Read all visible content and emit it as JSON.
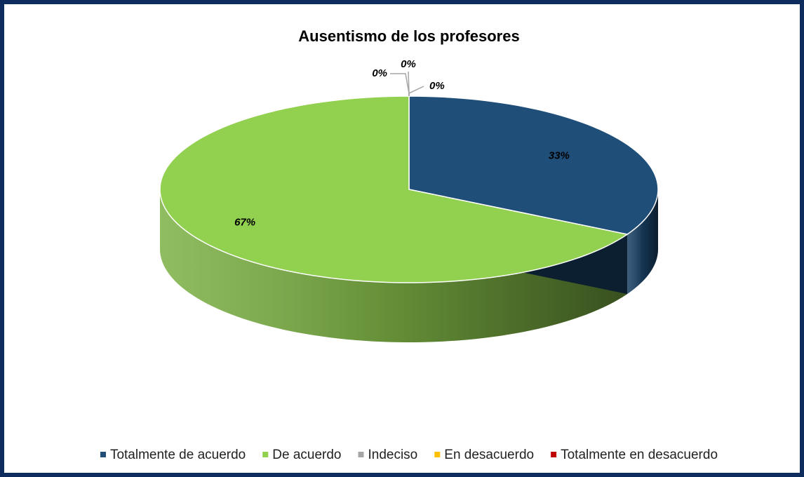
{
  "chart_data": {
    "type": "pie",
    "title": "Ausentismo de los profesores",
    "categories": [
      "Totalmente de acuerdo",
      "De acuerdo",
      "Indeciso",
      "En desacuerdo",
      "Totalmente en desacuerdo"
    ],
    "values": [
      33,
      67,
      0,
      0,
      0
    ],
    "value_labels": [
      "33%",
      "67%",
      "0%",
      "0%",
      "0%"
    ],
    "colors": [
      "#1f4e79",
      "#92d050",
      "#a5a5a5",
      "#ffc000",
      "#c00000"
    ],
    "legend": "bottom"
  }
}
